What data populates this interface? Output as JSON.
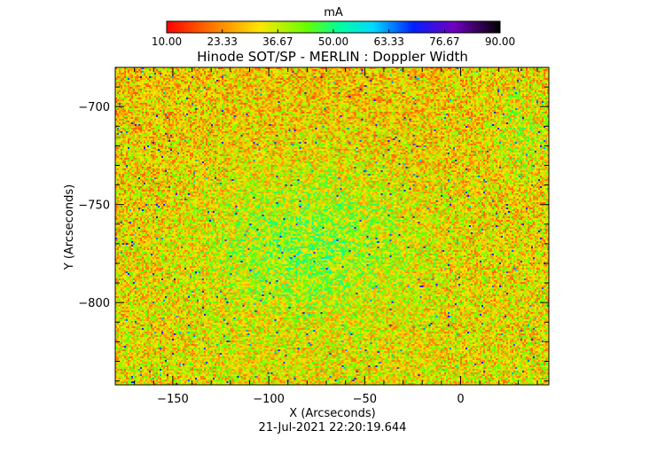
{
  "colorbar": {
    "unit": "mA",
    "ticks": [
      "10.00",
      "23.33",
      "36.67",
      "50.00",
      "63.33",
      "76.67",
      "90.00"
    ],
    "range": [
      10,
      90
    ],
    "colormap": "rainbow reversed: red-orange-yellow-green-cyan-blue-purple-black"
  },
  "timestamp": "21-Jul-2021 22:20:19.644",
  "chart_data": {
    "type": "heatmap",
    "title": "Hinode SOT/SP - MERLIN : Doppler Width",
    "xlabel": "X (Arcseconds)",
    "ylabel": "Y (Arcseconds)",
    "xlim": [
      -180,
      46
    ],
    "ylim": [
      -842,
      -680
    ],
    "x_ticks": [
      -150,
      -100,
      -50,
      0
    ],
    "y_ticks": [
      -700,
      -750,
      -800
    ],
    "x_tick_labels": [
      "−150",
      "−100",
      "−50",
      "0"
    ],
    "y_tick_labels": [
      "−700",
      "−750",
      "−800"
    ],
    "value_range": [
      10,
      90
    ],
    "dominant_values": "mostly 20-45 mA (orange/yellow), with green 45-55 mA patches concentrated around x -90 to -30, y -740 to -800",
    "colors": {
      "low": "#ff0000",
      "mid_low": "#ffa000",
      "mid": "#ffff00",
      "mid_high": "#00ff40",
      "high": "#0000ff",
      "max": "#000000"
    }
  }
}
